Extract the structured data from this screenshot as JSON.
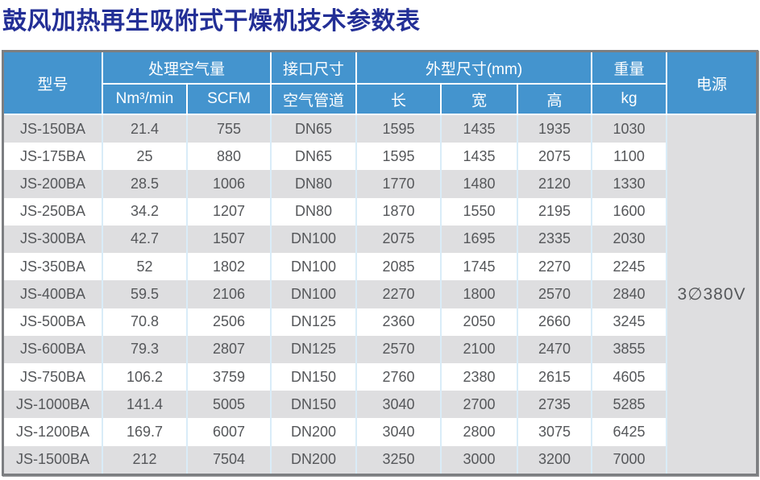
{
  "title": "鼓风加热再生吸附式干燥机技术参数表",
  "colors": {
    "title_blue": "#232f96",
    "header_blue": "#4494ce",
    "row_stripe_gray": "#dedee0",
    "cell_separator_blue": "#d9ecf8",
    "outer_border_gray": "#7c7e81",
    "body_text": "#55575a"
  },
  "table": {
    "headers": {
      "model": "型号",
      "air_volume_group": "处理空气量",
      "nm3_min": "Nm³/min",
      "scfm": "SCFM",
      "interface_group": "接口尺寸",
      "air_pipe": "空气管道",
      "dimensions_group": "外型尺寸(mm)",
      "length": "长",
      "width": "宽",
      "height": "高",
      "weight_group": "重量",
      "kg": "kg",
      "power": "电源"
    },
    "power_supply": "3∅380V",
    "rows": [
      {
        "model": "JS-150BA",
        "nm3_min": "21.4",
        "scfm": "755",
        "pipe": "DN65",
        "length": "1595",
        "width": "1435",
        "height": "1935",
        "kg": "1030"
      },
      {
        "model": "JS-175BA",
        "nm3_min": "25",
        "scfm": "880",
        "pipe": "DN65",
        "length": "1595",
        "width": "1435",
        "height": "2075",
        "kg": "1100"
      },
      {
        "model": "JS-200BA",
        "nm3_min": "28.5",
        "scfm": "1006",
        "pipe": "DN80",
        "length": "1770",
        "width": "1480",
        "height": "2120",
        "kg": "1330"
      },
      {
        "model": "JS-250BA",
        "nm3_min": "34.2",
        "scfm": "1207",
        "pipe": "DN80",
        "length": "1870",
        "width": "1550",
        "height": "2195",
        "kg": "1600"
      },
      {
        "model": "JS-300BA",
        "nm3_min": "42.7",
        "scfm": "1507",
        "pipe": "DN100",
        "length": "2075",
        "width": "1695",
        "height": "2335",
        "kg": "2030"
      },
      {
        "model": "JS-350BA",
        "nm3_min": "52",
        "scfm": "1802",
        "pipe": "DN100",
        "length": "2085",
        "width": "1745",
        "height": "2270",
        "kg": "2245"
      },
      {
        "model": "JS-400BA",
        "nm3_min": "59.5",
        "scfm": "2106",
        "pipe": "DN100",
        "length": "2270",
        "width": "1800",
        "height": "2570",
        "kg": "2840"
      },
      {
        "model": "JS-500BA",
        "nm3_min": "70.8",
        "scfm": "2506",
        "pipe": "DN125",
        "length": "2360",
        "width": "2050",
        "height": "2660",
        "kg": "3245"
      },
      {
        "model": "JS-600BA",
        "nm3_min": "79.3",
        "scfm": "2807",
        "pipe": "DN125",
        "length": "2570",
        "width": "2100",
        "height": "2470",
        "kg": "3855"
      },
      {
        "model": "JS-750BA",
        "nm3_min": "106.2",
        "scfm": "3759",
        "pipe": "DN150",
        "length": "2760",
        "width": "2380",
        "height": "2615",
        "kg": "4605"
      },
      {
        "model": "JS-1000BA",
        "nm3_min": "141.4",
        "scfm": "5005",
        "pipe": "DN150",
        "length": "3040",
        "width": "2700",
        "height": "2735",
        "kg": "5285"
      },
      {
        "model": "JS-1200BA",
        "nm3_min": "169.7",
        "scfm": "6007",
        "pipe": "DN200",
        "length": "3040",
        "width": "2800",
        "height": "3075",
        "kg": "6425"
      },
      {
        "model": "JS-1500BA",
        "nm3_min": "212",
        "scfm": "7504",
        "pipe": "DN200",
        "length": "3250",
        "width": "3000",
        "height": "3200",
        "kg": "7000"
      }
    ]
  }
}
